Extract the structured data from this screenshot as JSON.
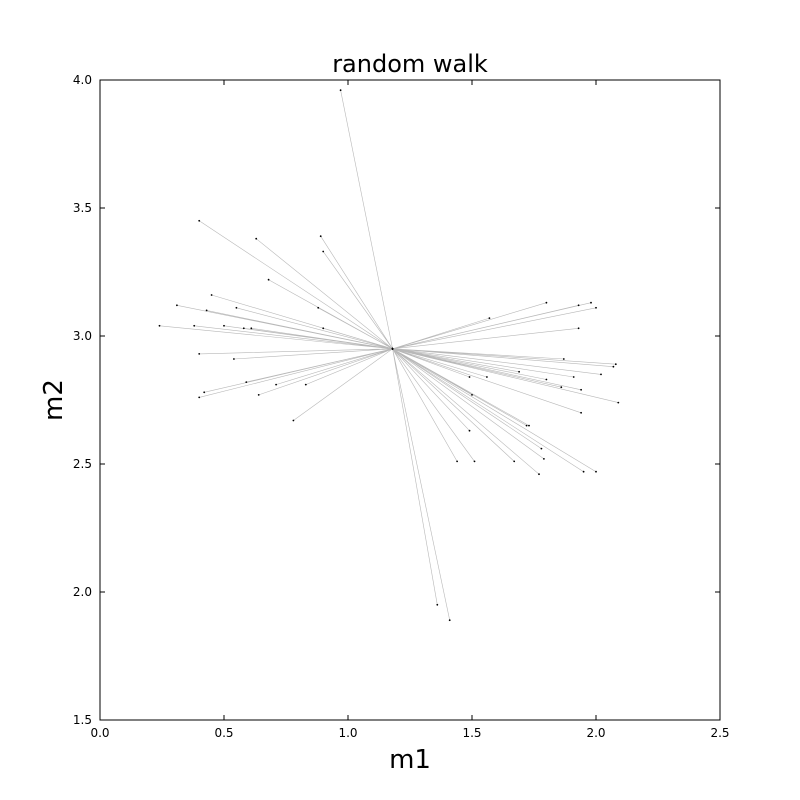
{
  "chart_data": {
    "type": "line",
    "title": "random walk",
    "xlabel": "m1",
    "ylabel": "m2",
    "xlim": [
      0.0,
      2.5
    ],
    "ylim": [
      1.5,
      4.0
    ],
    "xticks": [
      "0.0",
      "0.5",
      "1.0",
      "1.5",
      "2.0",
      "2.5"
    ],
    "yticks": [
      "1.5",
      "2.0",
      "2.5",
      "3.0",
      "3.5",
      "4.0"
    ],
    "grid": false,
    "line_color": "#9a9a9a",
    "marker_color": "#000000",
    "series": [
      {
        "x": [
          1.18,
          0.97,
          1.18,
          0.4,
          1.18,
          0.63,
          1.18,
          0.89,
          1.18,
          0.9,
          1.18,
          0.68,
          1.18,
          0.45,
          1.18,
          0.31,
          1.18,
          0.43,
          1.18,
          0.55,
          1.18,
          0.88,
          1.18,
          0.24,
          1.18,
          0.38,
          1.18,
          0.5,
          1.18,
          0.58,
          1.18,
          0.61,
          1.18,
          0.9,
          1.18,
          0.4,
          1.18,
          0.54,
          1.18,
          0.59,
          1.18,
          0.71,
          1.18,
          0.83,
          1.18,
          0.42,
          1.18,
          0.4,
          1.18,
          0.64,
          1.18,
          0.78,
          1.18,
          1.8,
          1.18,
          1.98,
          1.18,
          2.0,
          1.18,
          1.93,
          1.18,
          1.57,
          1.18,
          1.93,
          1.18,
          1.87,
          1.18,
          2.08,
          1.18,
          2.07,
          1.18,
          2.02,
          1.18,
          1.91,
          1.18,
          1.69,
          1.18,
          1.8,
          1.18,
          1.56,
          1.18,
          1.49,
          1.18,
          1.86,
          1.18,
          1.94,
          1.18,
          1.5,
          1.18,
          2.09,
          1.18,
          1.94,
          1.18,
          1.72,
          1.18,
          1.73,
          1.18,
          1.49,
          1.18,
          1.78,
          1.18,
          1.79,
          1.18,
          1.44,
          1.18,
          1.51,
          1.18,
          1.67,
          1.18,
          1.77,
          1.18,
          1.95,
          1.18,
          2.0,
          1.18,
          1.36,
          1.18,
          1.41
        ],
        "y": [
          2.95,
          3.96,
          2.95,
          3.45,
          2.95,
          3.38,
          2.95,
          3.39,
          2.95,
          3.33,
          2.95,
          3.22,
          2.95,
          3.16,
          2.95,
          3.12,
          2.95,
          3.1,
          2.95,
          3.11,
          2.95,
          3.11,
          2.95,
          3.04,
          2.95,
          3.04,
          2.95,
          3.04,
          2.95,
          3.03,
          2.95,
          3.03,
          2.95,
          3.03,
          2.95,
          2.93,
          2.95,
          2.91,
          2.95,
          2.82,
          2.95,
          2.81,
          2.95,
          2.81,
          2.95,
          2.78,
          2.95,
          2.76,
          2.95,
          2.77,
          2.95,
          2.67,
          2.95,
          3.13,
          2.95,
          3.13,
          2.95,
          3.11,
          2.95,
          3.12,
          2.95,
          3.07,
          2.95,
          3.03,
          2.95,
          2.91,
          2.95,
          2.89,
          2.95,
          2.88,
          2.95,
          2.85,
          2.95,
          2.84,
          2.95,
          2.86,
          2.95,
          2.83,
          2.95,
          2.84,
          2.95,
          2.84,
          2.95,
          2.8,
          2.95,
          2.79,
          2.95,
          2.77,
          2.95,
          2.74,
          2.95,
          2.7,
          2.95,
          2.65,
          2.95,
          2.65,
          2.95,
          2.63,
          2.95,
          2.56,
          2.95,
          2.52,
          2.95,
          2.51,
          2.95,
          2.51,
          2.95,
          2.51,
          2.95,
          2.46,
          2.95,
          2.47,
          2.95,
          2.47,
          2.95,
          1.95,
          2.95,
          1.89
        ]
      }
    ]
  }
}
